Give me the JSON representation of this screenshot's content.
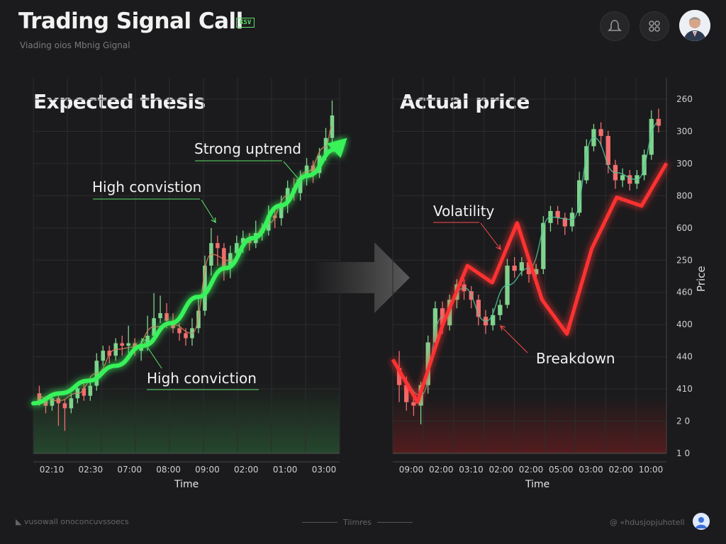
{
  "header": {
    "title": "Trading Signal Call",
    "badge": "KSV",
    "subtitle": "Viading oios Mbnig Gignal",
    "user_avatar": "user-avatar",
    "icons": [
      "alert-bell-icon",
      "grid-icon"
    ]
  },
  "footer": {
    "left": "vusowall onoconcuvssoecs",
    "center": "Tiimres",
    "right": "@ «hdusjopjuhotell"
  },
  "chart_data": [
    {
      "type": "candlestick",
      "title": "Expected thesis",
      "xlabel": "Time",
      "x_ticks": [
        "02:10",
        "02:30",
        "07:00",
        "08:00",
        "09:00",
        "02:00",
        "01:00",
        "03:00"
      ],
      "trend_color": "#39f25a",
      "trend": [
        10,
        18,
        28,
        40,
        56,
        74,
        95,
        118,
        142,
        168,
        192,
        213
      ],
      "candles": [
        {
          "o": 18,
          "c": 12,
          "h": 24,
          "l": 8
        },
        {
          "o": 12,
          "c": 8,
          "h": 16,
          "l": 2
        },
        {
          "o": 8,
          "c": 14,
          "h": 18,
          "l": 4
        },
        {
          "o": 14,
          "c": 10,
          "h": 18,
          "l": -8
        },
        {
          "o": 10,
          "c": 6,
          "h": 13,
          "l": -12
        },
        {
          "o": 6,
          "c": 14,
          "h": 18,
          "l": 2
        },
        {
          "o": 14,
          "c": 22,
          "h": 26,
          "l": 10
        },
        {
          "o": 22,
          "c": 16,
          "h": 26,
          "l": 12
        },
        {
          "o": 16,
          "c": 24,
          "h": 28,
          "l": 12
        },
        {
          "o": 24,
          "c": 44,
          "h": 50,
          "l": 20
        },
        {
          "o": 44,
          "c": 52,
          "h": 56,
          "l": 40
        },
        {
          "o": 52,
          "c": 48,
          "h": 56,
          "l": 42
        },
        {
          "o": 48,
          "c": 58,
          "h": 62,
          "l": 44
        },
        {
          "o": 58,
          "c": 56,
          "h": 64,
          "l": 48
        },
        {
          "o": 56,
          "c": 58,
          "h": 72,
          "l": 50
        },
        {
          "o": 58,
          "c": 52,
          "h": 62,
          "l": 48
        },
        {
          "o": 52,
          "c": 56,
          "h": 60,
          "l": 44
        },
        {
          "o": 56,
          "c": 64,
          "h": 80,
          "l": 52
        },
        {
          "o": 64,
          "c": 78,
          "h": 98,
          "l": 60
        },
        {
          "o": 78,
          "c": 82,
          "h": 96,
          "l": 74
        },
        {
          "o": 82,
          "c": 76,
          "h": 90,
          "l": 70
        },
        {
          "o": 76,
          "c": 70,
          "h": 82,
          "l": 66
        },
        {
          "o": 70,
          "c": 66,
          "h": 74,
          "l": 60
        },
        {
          "o": 66,
          "c": 62,
          "h": 70,
          "l": 56
        },
        {
          "o": 62,
          "c": 70,
          "h": 78,
          "l": 56
        },
        {
          "o": 70,
          "c": 84,
          "h": 94,
          "l": 66
        },
        {
          "o": 84,
          "c": 120,
          "h": 128,
          "l": 80
        },
        {
          "o": 120,
          "c": 138,
          "h": 150,
          "l": 112
        },
        {
          "o": 138,
          "c": 134,
          "h": 144,
          "l": 120
        },
        {
          "o": 134,
          "c": 118,
          "h": 138,
          "l": 108
        },
        {
          "o": 118,
          "c": 130,
          "h": 136,
          "l": 110
        },
        {
          "o": 130,
          "c": 138,
          "h": 144,
          "l": 124
        },
        {
          "o": 138,
          "c": 142,
          "h": 148,
          "l": 130
        },
        {
          "o": 142,
          "c": 138,
          "h": 146,
          "l": 132
        },
        {
          "o": 138,
          "c": 146,
          "h": 156,
          "l": 134
        },
        {
          "o": 146,
          "c": 148,
          "h": 154,
          "l": 140
        },
        {
          "o": 148,
          "c": 160,
          "h": 168,
          "l": 144
        },
        {
          "o": 160,
          "c": 158,
          "h": 168,
          "l": 150
        },
        {
          "o": 158,
          "c": 170,
          "h": 176,
          "l": 152
        },
        {
          "o": 170,
          "c": 182,
          "h": 188,
          "l": 162
        },
        {
          "o": 182,
          "c": 178,
          "h": 190,
          "l": 172
        },
        {
          "o": 178,
          "c": 190,
          "h": 196,
          "l": 172
        },
        {
          "o": 190,
          "c": 200,
          "h": 206,
          "l": 184
        },
        {
          "o": 200,
          "c": 194,
          "h": 204,
          "l": 186
        },
        {
          "o": 194,
          "c": 208,
          "h": 214,
          "l": 190
        },
        {
          "o": 208,
          "c": 222,
          "h": 230,
          "l": 204
        },
        {
          "o": 222,
          "c": 240,
          "h": 252,
          "l": 216
        }
      ],
      "annotations": [
        "Strong uptrend",
        "High convistion",
        "High conviction"
      ]
    },
    {
      "type": "candlestick",
      "title": "Actual price",
      "xlabel": "Time",
      "ylabel": "Price",
      "x_ticks": [
        "09:00",
        "02:00",
        "03:10",
        "02:00",
        "02:00",
        "05:00",
        "03:00",
        "02:00",
        "10:00"
      ],
      "y_ticks": [
        "260",
        "300",
        "300",
        "800",
        "600",
        "250",
        "460",
        "400",
        "440",
        "410",
        "2 0",
        "1 0"
      ],
      "trend_color": "#ff3030",
      "trend": [
        90,
        40,
        130,
        200,
        180,
        250,
        160,
        120,
        220,
        280,
        270,
        320
      ],
      "candles": [
        {
          "o": 80,
          "c": 60,
          "h": 100,
          "l": 40
        },
        {
          "o": 60,
          "c": 40,
          "h": 70,
          "l": 30
        },
        {
          "o": 40,
          "c": 36,
          "h": 50,
          "l": 24
        },
        {
          "o": 36,
          "c": 60,
          "h": 64,
          "l": 14
        },
        {
          "o": 60,
          "c": 110,
          "h": 118,
          "l": 50
        },
        {
          "o": 110,
          "c": 150,
          "h": 158,
          "l": 104
        },
        {
          "o": 150,
          "c": 130,
          "h": 158,
          "l": 120
        },
        {
          "o": 130,
          "c": 160,
          "h": 166,
          "l": 124
        },
        {
          "o": 160,
          "c": 178,
          "h": 184,
          "l": 150
        },
        {
          "o": 178,
          "c": 170,
          "h": 184,
          "l": 160
        },
        {
          "o": 170,
          "c": 160,
          "h": 176,
          "l": 150
        },
        {
          "o": 160,
          "c": 140,
          "h": 166,
          "l": 130
        },
        {
          "o": 140,
          "c": 130,
          "h": 148,
          "l": 120
        },
        {
          "o": 130,
          "c": 142,
          "h": 150,
          "l": 124
        },
        {
          "o": 142,
          "c": 154,
          "h": 160,
          "l": 136
        },
        {
          "o": 154,
          "c": 200,
          "h": 208,
          "l": 150
        },
        {
          "o": 200,
          "c": 194,
          "h": 210,
          "l": 186
        },
        {
          "o": 194,
          "c": 204,
          "h": 210,
          "l": 188
        },
        {
          "o": 204,
          "c": 190,
          "h": 208,
          "l": 180
        },
        {
          "o": 190,
          "c": 196,
          "h": 202,
          "l": 184
        },
        {
          "o": 196,
          "c": 250,
          "h": 258,
          "l": 190
        },
        {
          "o": 250,
          "c": 264,
          "h": 270,
          "l": 240
        },
        {
          "o": 264,
          "c": 256,
          "h": 270,
          "l": 248
        },
        {
          "o": 256,
          "c": 246,
          "h": 262,
          "l": 236
        },
        {
          "o": 246,
          "c": 262,
          "h": 268,
          "l": 240
        },
        {
          "o": 262,
          "c": 300,
          "h": 310,
          "l": 258
        },
        {
          "o": 300,
          "c": 340,
          "h": 348,
          "l": 296
        },
        {
          "o": 340,
          "c": 360,
          "h": 366,
          "l": 334
        },
        {
          "o": 360,
          "c": 352,
          "h": 368,
          "l": 340
        },
        {
          "o": 352,
          "c": 318,
          "h": 358,
          "l": 308
        },
        {
          "o": 318,
          "c": 300,
          "h": 324,
          "l": 290
        },
        {
          "o": 300,
          "c": 306,
          "h": 314,
          "l": 292
        },
        {
          "o": 306,
          "c": 296,
          "h": 312,
          "l": 288
        },
        {
          "o": 296,
          "c": 306,
          "h": 312,
          "l": 290
        },
        {
          "o": 306,
          "c": 330,
          "h": 336,
          "l": 300
        },
        {
          "o": 330,
          "c": 372,
          "h": 382,
          "l": 324
        },
        {
          "o": 372,
          "c": 364,
          "h": 384,
          "l": 356
        }
      ],
      "annotations": [
        "Volatility",
        "Breakdown"
      ]
    }
  ]
}
